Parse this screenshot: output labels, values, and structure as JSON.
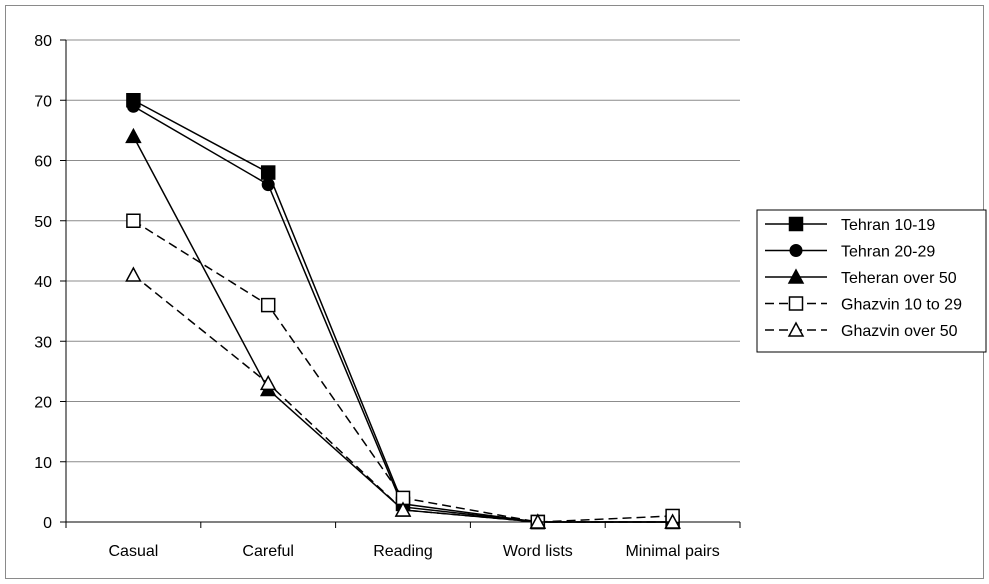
{
  "chart_data": {
    "type": "line",
    "categories": [
      "Casual",
      "Careful",
      "Reading",
      "Word lists",
      "Minimal pairs"
    ],
    "ylim": [
      0,
      80
    ],
    "yticks": [
      0,
      10,
      20,
      30,
      40,
      50,
      60,
      70,
      80
    ],
    "grid": "horizontal",
    "legend_position": "right",
    "series": [
      {
        "name": "Tehran 10-19",
        "values": [
          70,
          58,
          3,
          0,
          0
        ],
        "marker": "filled-square",
        "dash": "solid",
        "color": "#000000"
      },
      {
        "name": "Tehran 20-29",
        "values": [
          69,
          56,
          2.5,
          0,
          0
        ],
        "marker": "filled-circle",
        "dash": "solid",
        "color": "#000000"
      },
      {
        "name": "Teheran over 50",
        "values": [
          64,
          22,
          2,
          0,
          0
        ],
        "marker": "filled-triangle",
        "dash": "solid",
        "color": "#000000"
      },
      {
        "name": "Ghazvin 10 to 29",
        "values": [
          50,
          36,
          4,
          0,
          1
        ],
        "marker": "open-square",
        "dash": "dashed",
        "color": "#000000"
      },
      {
        "name": "Ghazvin over 50",
        "values": [
          41,
          23,
          2,
          0,
          0
        ],
        "marker": "open-triangle",
        "dash": "dashed",
        "color": "#000000"
      }
    ]
  }
}
